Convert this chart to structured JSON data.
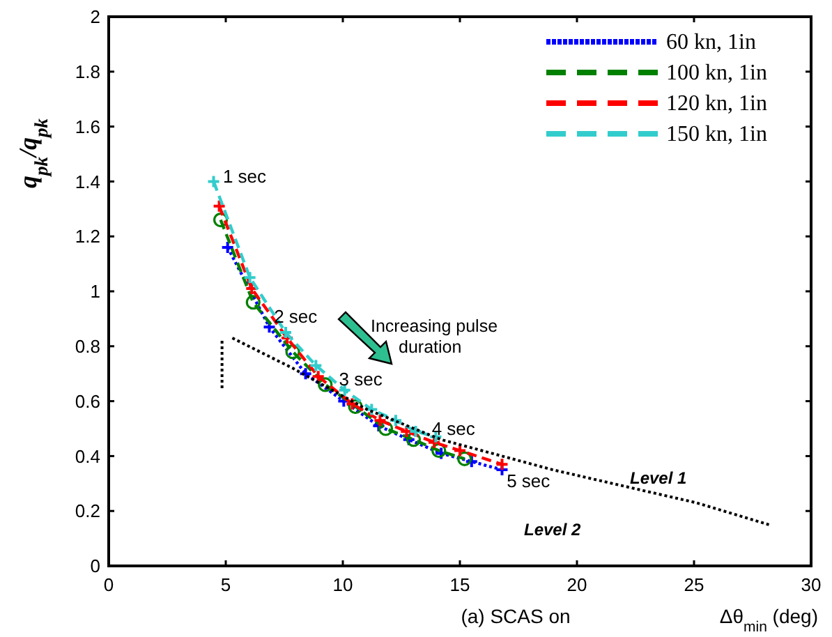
{
  "chart_data": {
    "type": "line",
    "title": "(a) SCAS on",
    "xlabel": "Δθ$_{min}$ (deg)",
    "ylabel": "q$_{pk}$/q$_{pk}$",
    "xlim": [
      0,
      30
    ],
    "ylim": [
      0,
      2
    ],
    "xticks": [
      0,
      5,
      10,
      15,
      20,
      25,
      30
    ],
    "yticks": [
      0,
      0.2,
      0.4,
      0.6,
      0.8,
      1,
      1.2,
      1.4,
      1.6,
      1.8,
      2
    ],
    "grid": false,
    "legend": "top right",
    "annotations": [
      {
        "text": "1 sec",
        "x": 4.88,
        "y": 1.42
      },
      {
        "text": "2 sec",
        "x": 7.06,
        "y": 0.91
      },
      {
        "text": "3 sec",
        "x": 9.84,
        "y": 0.68
      },
      {
        "text": "4 sec",
        "x": 13.8,
        "y": 0.5
      },
      {
        "text": "5 sec",
        "x": 17.0,
        "y": 0.31
      },
      "Increasing pulse duration",
      "Level 1",
      "Level 2"
    ],
    "series": [
      {
        "name": "60 kn, 1in",
        "color": "#0000ff",
        "line_style": "dotted",
        "marker": "cross",
        "x": [
          5.08,
          6.86,
          8.41,
          10.04,
          11.53,
          12.82,
          14.2,
          15.5,
          16.8
        ],
        "values": [
          1.16,
          0.87,
          0.7,
          0.6,
          0.51,
          0.46,
          0.41,
          0.38,
          0.35
        ]
      },
      {
        "name": "100 kn, 1in",
        "color": "#008000",
        "line_style": "dashed",
        "marker": "circle",
        "x": [
          4.78,
          6.17,
          7.86,
          9.25,
          10.54,
          11.83,
          13.02,
          14.1,
          15.2
        ],
        "values": [
          1.26,
          0.96,
          0.78,
          0.66,
          0.58,
          0.5,
          0.46,
          0.42,
          0.39
        ]
      },
      {
        "name": "120 kn, 1in",
        "color": "#ff0000",
        "line_style": "dashed",
        "marker": "cross",
        "x": [
          4.72,
          6.11,
          7.62,
          8.95,
          10.4,
          11.59,
          12.72,
          13.9,
          15.0,
          16.8
        ],
        "values": [
          1.31,
          1.01,
          0.83,
          0.69,
          0.59,
          0.53,
          0.49,
          0.45,
          0.42,
          0.37
        ]
      },
      {
        "name": "150 kn, 1in",
        "color": "#33cccc",
        "line_style": "dashed",
        "marker": "cross",
        "x": [
          4.48,
          6.03,
          7.56,
          8.85,
          10.08,
          11.23,
          12.26,
          13.11,
          13.97
        ],
        "values": [
          1.4,
          1.05,
          0.85,
          0.73,
          0.64,
          0.57,
          0.53,
          0.49,
          0.47
        ]
      },
      {
        "color": "#000000",
        "line_style": "dotted",
        "marker": "none",
        "x": [
          5.28,
          7.86,
          11.03,
          14.2,
          18.97,
          25.1,
          28.2
        ],
        "values": [
          0.83,
          0.72,
          0.57,
          0.46,
          0.35,
          0.23,
          0.15
        ]
      },
      {
        "color": "#000000",
        "line_style": "dotted",
        "marker": "none",
        "x": [
          4.84,
          4.84
        ],
        "values": [
          0.82,
          0.64
        ]
      }
    ]
  }
}
